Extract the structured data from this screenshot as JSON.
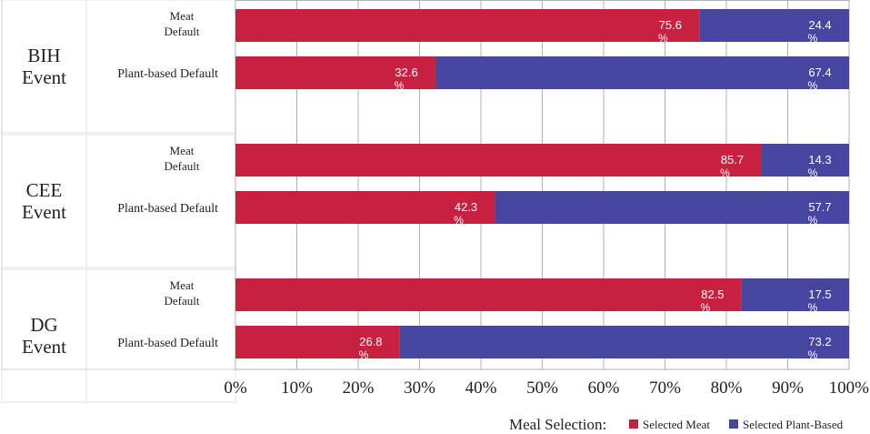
{
  "chart_data": {
    "type": "bar",
    "stacked": true,
    "orientation": "horizontal",
    "xlim": [
      0,
      100
    ],
    "x_ticks": [
      "0%",
      "10%",
      "20%",
      "30%",
      "40%",
      "50%",
      "60%",
      "70%",
      "80%",
      "90%",
      "100%"
    ],
    "groups": [
      {
        "name": [
          "BIH",
          "Event"
        ],
        "bars": [
          {
            "label": [
              "Meat",
              "Default"
            ],
            "values": [
              75.6,
              24.4
            ],
            "labels": [
              [
                "75.6",
                "%"
              ],
              [
                "24.4",
                "%"
              ]
            ]
          },
          {
            "label": [
              "Plant-based Default"
            ],
            "values": [
              32.6,
              67.4
            ],
            "labels": [
              [
                "32.6",
                "%"
              ],
              [
                "67.4",
                "%"
              ]
            ]
          }
        ]
      },
      {
        "name": [
          "CEE",
          "Event"
        ],
        "bars": [
          {
            "label": [
              "Meat",
              "Default"
            ],
            "values": [
              85.7,
              14.3
            ],
            "labels": [
              [
                "85.7",
                "%"
              ],
              [
                "14.3",
                "%"
              ]
            ]
          },
          {
            "label": [
              "Plant-based Default"
            ],
            "values": [
              42.3,
              57.7
            ],
            "labels": [
              [
                "42.3",
                "%"
              ],
              [
                "57.7",
                "%"
              ]
            ]
          }
        ]
      },
      {
        "name": [
          "DG",
          "Event"
        ],
        "bars": [
          {
            "label": [
              "Meat",
              "Default"
            ],
            "values": [
              82.5,
              17.5
            ],
            "labels": [
              [
                "82.5",
                "%"
              ],
              [
                "17.5",
                "%"
              ]
            ]
          },
          {
            "label": [
              "Plant-based Default"
            ],
            "values": [
              26.8,
              73.2
            ],
            "labels": [
              [
                "26.8",
                "%"
              ],
              [
                "73.2",
                "%"
              ]
            ]
          }
        ]
      }
    ],
    "series": [
      {
        "name": "Selected Meat",
        "color": "#c8203f"
      },
      {
        "name": "Selected Plant-Based",
        "color": "#4646a0"
      }
    ],
    "legend": {
      "title": "Meal Selection:",
      "position": "bottom-right"
    },
    "grid": true
  }
}
